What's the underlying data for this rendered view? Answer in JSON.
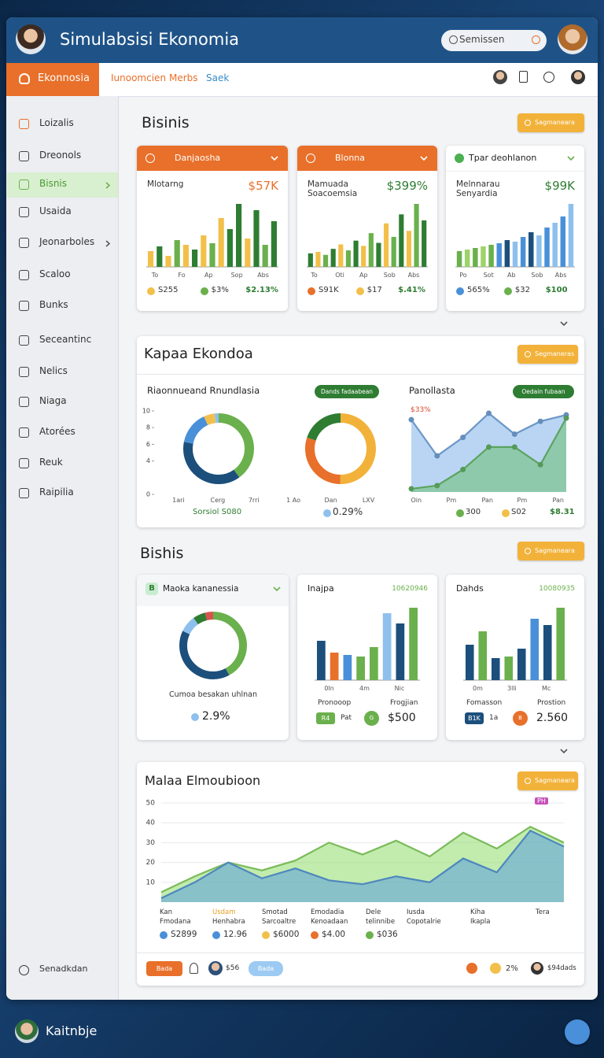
{
  "header": {
    "title": "Simulabsisi Ekonomia",
    "search": "Semissen"
  },
  "nav": {
    "tab": "Ekonnosia",
    "links": [
      "Iunoomcien",
      "Merbs",
      "Saek"
    ]
  },
  "sidebar": {
    "items": [
      "Loizalis",
      "Dreonols",
      "Bisnis",
      "Usaida",
      "Jeonarboles",
      "Scaloo",
      "Bunks",
      "Seceantinc",
      "Nelics",
      "Niaga",
      "Atorées",
      "Reuk",
      "Raipilia"
    ],
    "footer": "Senadkdan"
  },
  "section1": {
    "title": "Bisinis",
    "button": "Sagmaneara",
    "cards": [
      {
        "header": "Danjaosha",
        "header_color": "#e8702a",
        "label": "Mlotarng",
        "value": "$57K",
        "value_color": "#e8702a",
        "chart": {
          "type": "bar",
          "values": [
            20,
            26,
            14,
            34,
            28,
            22,
            40,
            30,
            62,
            48,
            80,
            36,
            72,
            28,
            58
          ],
          "colors": [
            "#f2c04a",
            "#2e7d32",
            "#f2c04a",
            "#6ab04c",
            "#f2c04a",
            "#2e7d32",
            "#f2c04a",
            "#6ab04c",
            "#f2c04a",
            "#2e7d32",
            "#2e7d32",
            "#f2c04a",
            "#2e7d32",
            "#6ab04c",
            "#2e7d32"
          ]
        },
        "x_labels": [
          "To",
          "Fo",
          "Ap",
          "Sop",
          "Abs"
        ],
        "legend": [
          "S255",
          "$3%",
          "$2.13%"
        ]
      },
      {
        "header": "Blonna",
        "header_color": "#e8702a",
        "label": "Mamuada Soacoemsia",
        "value": "$399%",
        "value_color": "#2e7d32",
        "chart": {
          "type": "bar",
          "values": [
            18,
            20,
            16,
            24,
            30,
            22,
            35,
            28,
            45,
            32,
            58,
            40,
            70,
            48,
            84,
            62
          ],
          "colors": [
            "#2e7d32",
            "#f2c04a",
            "#6ab04c",
            "#2e7d32",
            "#f2c04a",
            "#6ab04c",
            "#2e7d32",
            "#f2c04a",
            "#6ab04c",
            "#2e7d32",
            "#f2c04a",
            "#6ab04c",
            "#2e7d32",
            "#f2c04a",
            "#6ab04c",
            "#2e7d32"
          ]
        },
        "x_labels": [
          "To",
          "Oti",
          "Ap",
          "Sob",
          "Abs"
        ],
        "legend": [
          "S91K",
          "$17",
          "$.41%"
        ]
      },
      {
        "header": "Tpar deohlanon",
        "header_color": "#ffffff",
        "label": "Melnnarau Senyardia",
        "value": "$99K",
        "value_color": "#2e7d32",
        "chart": {
          "type": "bar",
          "values": [
            20,
            22,
            24,
            26,
            28,
            30,
            34,
            32,
            38,
            44,
            40,
            50,
            56,
            64,
            80
          ],
          "colors": [
            "#6ab04c",
            "#9ed36a",
            "#6ab04c",
            "#9ed36a",
            "#6ab04c",
            "#4a90d9",
            "#1c4f7c",
            "#8ec0ee",
            "#4a90d9",
            "#1c4f7c",
            "#8ec0ee",
            "#4a90d9",
            "#8ec0ee",
            "#4a90d9",
            "#8ec0ee"
          ]
        },
        "x_labels": [
          "Po",
          "Sot",
          "Ab",
          "Sob",
          "Abs"
        ],
        "legend": [
          "565%",
          "$32",
          "$100"
        ]
      }
    ]
  },
  "section2": {
    "title": "Kapaa Ekondoa",
    "button": "Segmaneras",
    "left": {
      "subtitle": "Riaonnueand Rnundlasia",
      "pill": "Dands fadaabean",
      "yticks": [
        10,
        8,
        6,
        4,
        0
      ],
      "donuts": [
        {
          "type": "donut",
          "values": [
            40,
            38,
            15,
            5,
            2
          ],
          "colors": [
            "#6ab04c",
            "#1c4f7c",
            "#4a90d9",
            "#f2c04a",
            "#8ec0ee"
          ]
        },
        {
          "type": "donut",
          "values": [
            50,
            30,
            20
          ],
          "colors": [
            "#f2b23a",
            "#e8702a",
            "#2e7d32"
          ]
        }
      ],
      "x_labels": [
        "1ari",
        "Cerg",
        "7rri",
        "1 Ao",
        "Dan",
        "LXV"
      ],
      "footer": [
        "Sorsiol S080",
        "0.29%"
      ]
    },
    "right": {
      "subtitle": "Panollasta",
      "pill": "Oedain fubaan",
      "annotation": "$33%",
      "chart": {
        "type": "area",
        "series": [
          {
            "color": "#7fb2ea",
            "values": [
              90,
              45,
              68,
              98,
              72,
              88,
              96
            ]
          },
          {
            "color": "#6cc070",
            "values": [
              4,
              8,
              28,
              56,
              56,
              34,
              92
            ]
          }
        ]
      },
      "x_labels": [
        "Oin",
        "Pm",
        "Pan",
        "Pm",
        "Pan"
      ],
      "legend": [
        "300",
        "S02",
        "$8.31"
      ]
    }
  },
  "section3": {
    "title": "Bishis",
    "button": "Sagmaneara",
    "cards": [
      {
        "header": "Maoka kananessia",
        "badge": "B",
        "chart": {
          "type": "donut",
          "values": [
            42,
            40,
            8,
            6,
            4
          ],
          "colors": [
            "#6ab04c",
            "#1c4f7c",
            "#8ec0ee",
            "#2e7d32",
            "#d9534f"
          ]
        },
        "caption": "Cumoa besakan uhlnan",
        "value": "2.9%"
      },
      {
        "header": "Inajpa",
        "code": "10620946",
        "chart": {
          "type": "bar",
          "values": [
            50,
            35,
            32,
            30,
            42,
            85,
            72,
            92
          ],
          "colors": [
            "#1c4f7c",
            "#e8702a",
            "#4a90d9",
            "#6ab04c",
            "#6ab04c",
            "#8ec0ee",
            "#1c4f7c",
            "#6ab04c"
          ]
        },
        "x_labels": [
          "0ln",
          "4m",
          "Nic"
        ],
        "labels": [
          "Pronooop",
          "Frogjian"
        ],
        "footer": [
          "R4",
          "Pat",
          "G",
          "$500"
        ]
      },
      {
        "header": "Dahds",
        "code": "10080935",
        "chart": {
          "type": "bar",
          "values": [
            45,
            62,
            28,
            30,
            40,
            78,
            70,
            92
          ],
          "colors": [
            "#1c4f7c",
            "#6ab04c",
            "#1c4f7c",
            "#6ab04c",
            "#1c4f7c",
            "#4a90d9",
            "#1c4f7c",
            "#6ab04c"
          ]
        },
        "x_labels": [
          "0m",
          "3lli",
          "Mc"
        ],
        "labels": [
          "Fomasson",
          "Prostion"
        ],
        "footer": [
          "B1K",
          "1a",
          "B",
          "2.560"
        ]
      }
    ]
  },
  "section4": {
    "title": "Malaa Elmoubioon",
    "button": "Sagmaneara",
    "chart": {
      "type": "area",
      "ylim": [
        0,
        50
      ],
      "yticks": [
        10,
        20,
        30,
        40,
        50
      ],
      "annotation": "PH",
      "series": [
        {
          "color": "#8fdc6a",
          "values": [
            5,
            13,
            20,
            16,
            21,
            30,
            24,
            31,
            23,
            35,
            27,
            38,
            30
          ]
        },
        {
          "color": "#5b9fe0",
          "values": [
            2,
            10,
            20,
            12,
            17,
            11,
            9,
            13,
            10,
            22,
            15,
            36,
            28
          ]
        }
      ]
    },
    "legend": [
      [
        "Kan",
        "Fmodana",
        "S2899"
      ],
      [
        "Usdam",
        "Henhabra",
        "12.96"
      ],
      [
        "Smotad",
        "Sarcoaltre",
        "$6000"
      ],
      [
        "Emodadia",
        "Kenoadaan",
        "$4.00"
      ],
      [
        "Dele",
        "telinnibe",
        "$036"
      ],
      [
        "Iusda",
        "Copotalrie"
      ],
      [
        "Kiha",
        "Ikapla"
      ],
      [
        "Tera"
      ]
    ],
    "toolbar": [
      "Bada",
      "$56",
      "Bada",
      "2%",
      "$94dads"
    ]
  },
  "footer": {
    "user": "Kaitnbje"
  }
}
